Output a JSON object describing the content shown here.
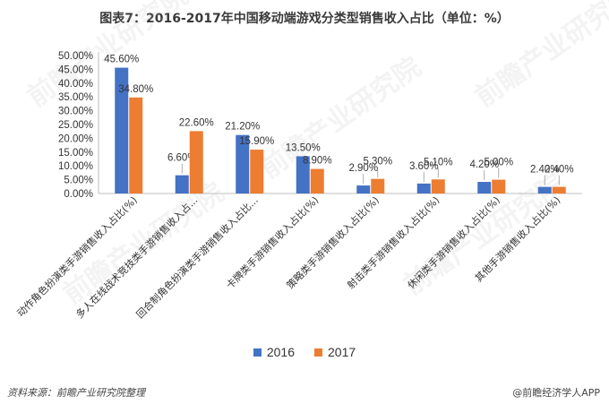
{
  "title": "图表7：2016-2017年中国移动端游戏分类型销售收入占比（单位：%）",
  "source": "资料来源：前瞻产业研究院整理",
  "brand": "@前瞻经济学人APP",
  "watermark": "前瞻产业研究院",
  "colors": {
    "s2016": "#4472C4",
    "s2017": "#ED7D31",
    "axis": "#bfbfbf"
  },
  "chart_data": {
    "type": "bar",
    "title": "图表7：2016-2017年中国移动端游戏分类型销售收入占比（单位：%）",
    "categories": [
      "动作角色扮演类手游销售收入占比(%)",
      "多人在线战术竞技类手游销售收入占...",
      "回合制角色扮演类手游销售收入占比...",
      "卡牌类手游销售收入占比(%)",
      "策略类手游销售收入占比(%)",
      "射击类手游销售收入占比(%)",
      "休闲类手游销售收入占比(%)",
      "其他手游销售收入占比(%)"
    ],
    "series": [
      {
        "name": "2016",
        "values": [
          45.6,
          6.6,
          21.2,
          13.5,
          2.9,
          3.6,
          4.2,
          2.4
        ],
        "labels": [
          "45.60%",
          "6.60%",
          "21.20%",
          "13.50%",
          "2.90%",
          "3.60%",
          "4.20%",
          "2.40%"
        ]
      },
      {
        "name": "2017",
        "values": [
          34.8,
          22.6,
          15.9,
          8.9,
          5.3,
          5.1,
          5.0,
          2.4
        ],
        "labels": [
          "34.80%",
          "22.60%",
          "15.90%",
          "8.90%",
          "5.30%",
          "5.10%",
          "5.00%",
          "2.40%"
        ]
      }
    ],
    "yticks": [
      "0.00%",
      "5.00%",
      "10.00%",
      "15.00%",
      "20.00%",
      "25.00%",
      "30.00%",
      "35.00%",
      "40.00%",
      "45.00%",
      "50.00%"
    ],
    "ylim": [
      0,
      50
    ],
    "xlabel": "",
    "ylabel": "",
    "legend": "bottom",
    "grid": false
  }
}
